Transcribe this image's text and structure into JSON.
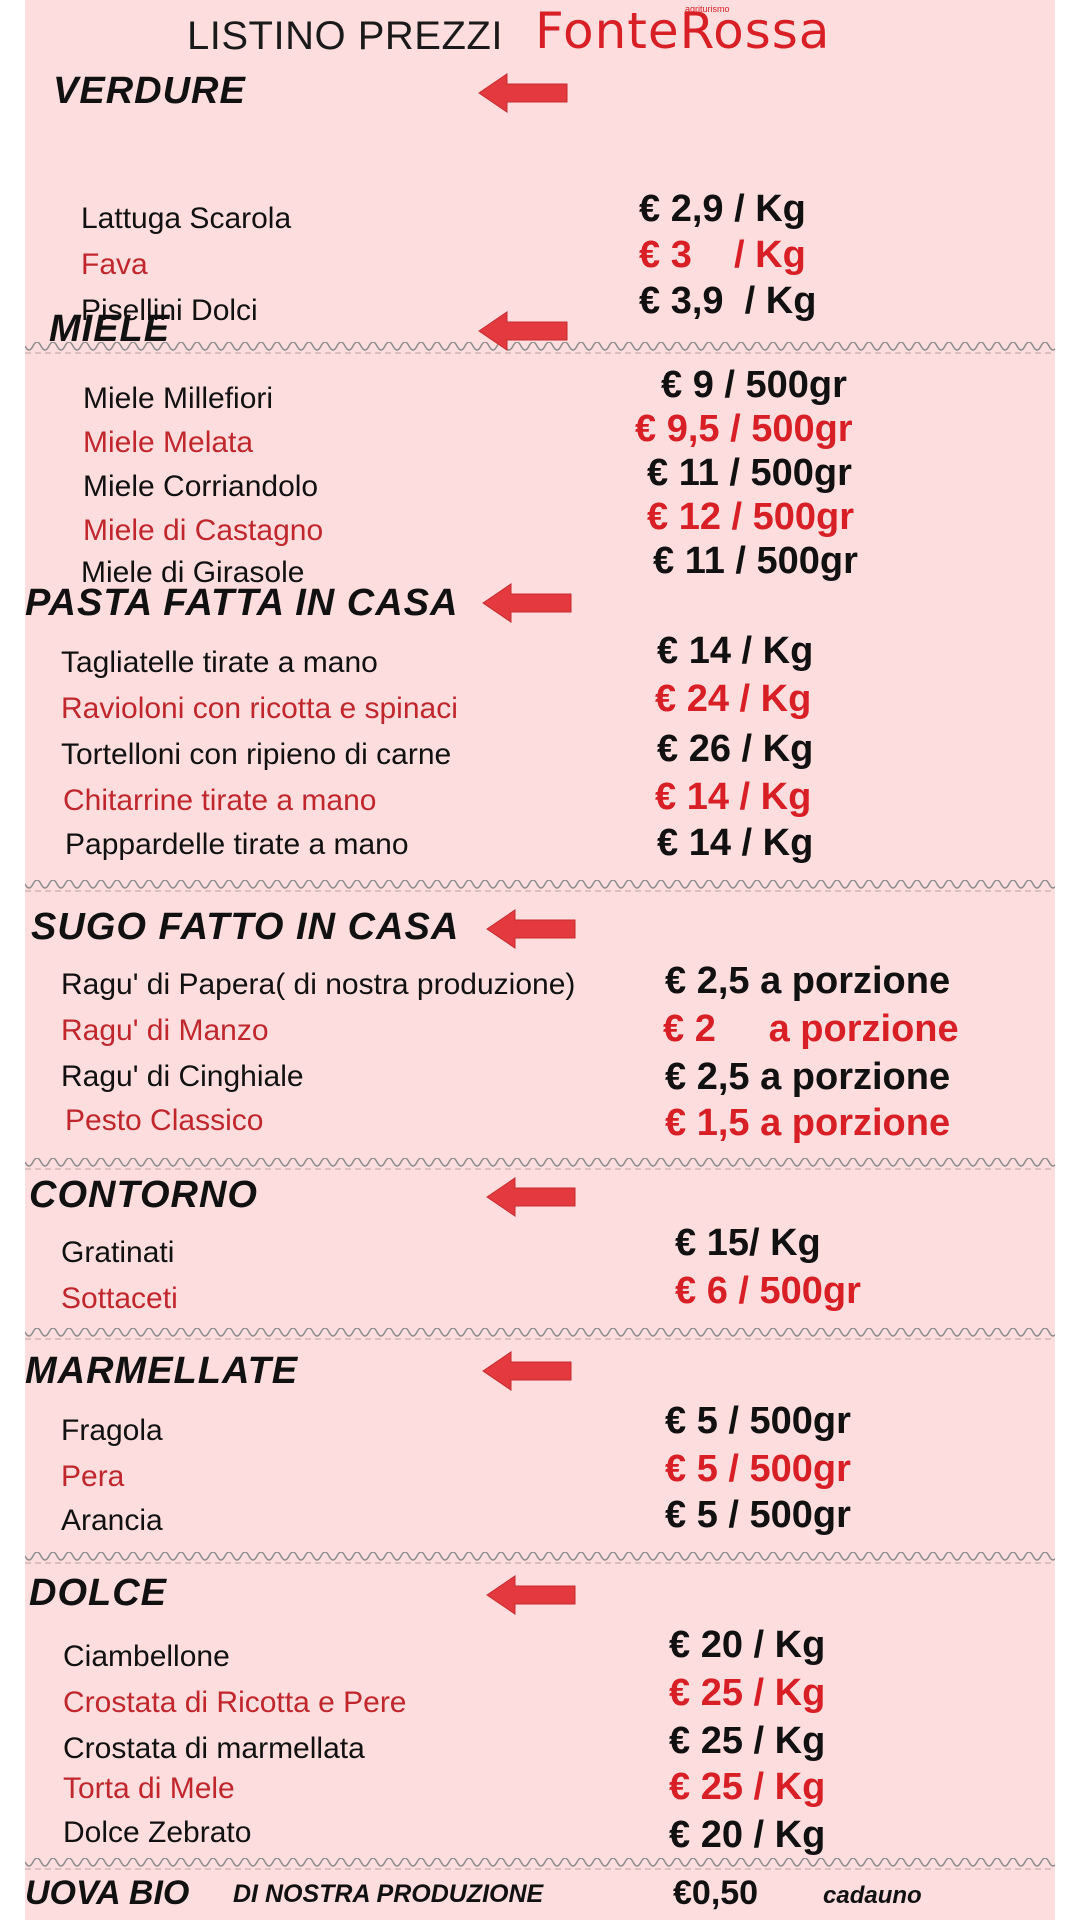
{
  "header": {
    "title": "LISTINO PREZZI",
    "brand": "FonteRossa",
    "brand_tag": "agriturismo"
  },
  "colors": {
    "background": "#fddddd",
    "accent": "#d81f26",
    "text": "#111111"
  },
  "icons": {
    "section_pointer": "left-arrow-icon"
  },
  "sections": [
    {
      "title": "VERDURE",
      "items": [
        {
          "name": "Lattuga Scarola",
          "price": "€ 2,9 / Kg"
        },
        {
          "name": "Fava",
          "price": "€ 3    / Kg"
        },
        {
          "name": "Pisellini Dolci",
          "price": "€ 3,9  / Kg"
        }
      ]
    },
    {
      "title": "MIELE",
      "items": [
        {
          "name": "Miele Millefiori",
          "price": "€ 9 / 500gr"
        },
        {
          "name": "Miele Melata",
          "price": "€ 9,5 / 500gr"
        },
        {
          "name": "Miele Corriandolo",
          "price": "€ 11 / 500gr"
        },
        {
          "name": "Miele di Castagno",
          "price": "€ 12 / 500gr"
        },
        {
          "name": "Miele di Girasole",
          "price": "€ 11 / 500gr"
        }
      ]
    },
    {
      "title": "PASTA FATTA IN CASA",
      "items": [
        {
          "name": "Tagliatelle tirate a mano",
          "price": "€ 14 / Kg"
        },
        {
          "name": "Ravioloni con ricotta e spinaci",
          "price": "€ 24 / Kg"
        },
        {
          "name": "Tortelloni con ripieno di carne",
          "price": "€ 26 / Kg"
        },
        {
          "name": "Chitarrine tirate a mano",
          "price": "€ 14 / Kg"
        },
        {
          "name": "Pappardelle tirate a mano",
          "price": "€ 14 / Kg"
        }
      ]
    },
    {
      "title": "SUGO FATTO IN CASA",
      "items": [
        {
          "name": "Ragu' di Papera( di nostra produzione)",
          "price": "€ 2,5 a porzione"
        },
        {
          "name": "Ragu' di Manzo",
          "price": "€ 2     a porzione"
        },
        {
          "name": "Ragu' di Cinghiale",
          "price": "€ 2,5 a porzione"
        },
        {
          "name": "Pesto Classico",
          "price": "€ 1,5 a porzione"
        }
      ]
    },
    {
      "title": "CONTORNO",
      "items": [
        {
          "name": "Gratinati",
          "price": "€ 15/ Kg"
        },
        {
          "name": "Sottaceti",
          "price": "€ 6 / 500gr"
        }
      ]
    },
    {
      "title": "MARMELLATE",
      "items": [
        {
          "name": "Fragola",
          "price": "€ 5 / 500gr"
        },
        {
          "name": "Pera",
          "price": "€ 5 / 500gr"
        },
        {
          "name": "Arancia",
          "price": "€ 5 / 500gr"
        }
      ]
    },
    {
      "title": "DOLCE",
      "items": [
        {
          "name": "Ciambellone",
          "price": "€ 20 / Kg"
        },
        {
          "name": "Crostata di Ricotta e Pere",
          "price": "€ 25 / Kg"
        },
        {
          "name": "Crostata di marmellata",
          "price": "€ 25 / Kg"
        },
        {
          "name": "Torta di Mele",
          "price": "€ 25 / Kg"
        },
        {
          "name": "Dolce Zebrato",
          "price": "€ 20 / Kg"
        }
      ]
    }
  ],
  "footer": {
    "title": "UOVA BIO",
    "subtitle": "DI NOSTRA PRODUZIONE",
    "price": "€0,50",
    "unit": "cadauno"
  }
}
